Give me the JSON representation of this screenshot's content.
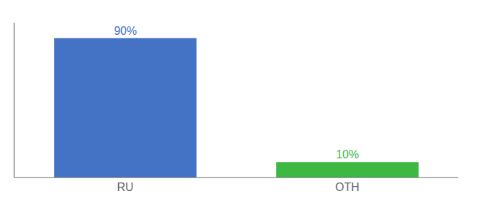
{
  "chart_data": {
    "type": "bar",
    "categories": [
      "RU",
      "OTH"
    ],
    "values": [
      90,
      10
    ],
    "value_labels": [
      "90%",
      "10%"
    ],
    "colors": [
      "#4472c4",
      "#3cb843"
    ],
    "ylim": [
      0,
      100
    ],
    "data_labels": true,
    "tick_labels": "x"
  }
}
